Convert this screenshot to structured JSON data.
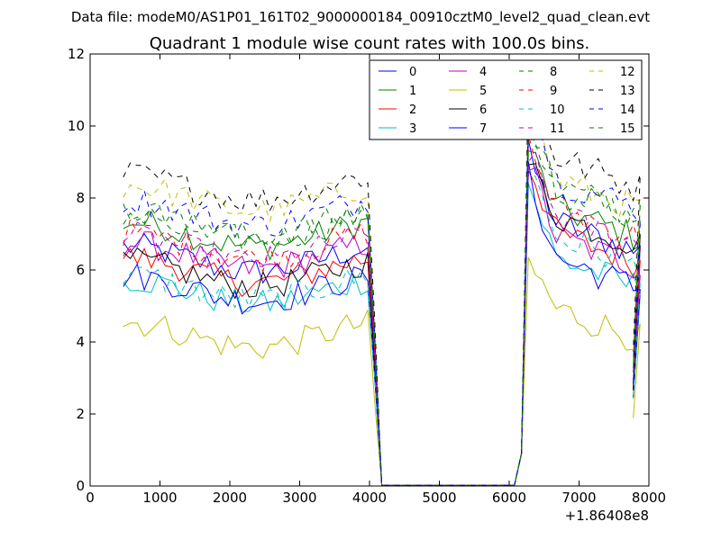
{
  "chart_data": {
    "type": "line",
    "suptitle": "Data file: modeM0/AS1P01_161T02_9000000184_00910cztM0_level2_quad_clean.evt",
    "title": "Quadrant 1 module wise count rates with 100.0s bins.",
    "xlabel": "",
    "ylabel": "",
    "x_offset_label": "+1.86408e8",
    "xlim": [
      0,
      8000
    ],
    "ylim": [
      0,
      12
    ],
    "x_ticks": [
      0,
      1000,
      2000,
      3000,
      4000,
      5000,
      6000,
      7000,
      8000
    ],
    "y_ticks": [
      0,
      2,
      4,
      6,
      8,
      10,
      12
    ],
    "x_tick_labels": [
      "0",
      "1000",
      "2000",
      "3000",
      "4000",
      "5000",
      "6000",
      "7000",
      "8000"
    ],
    "y_tick_labels": [
      "0",
      "2",
      "4",
      "6",
      "8",
      "10",
      "12"
    ],
    "grid": false,
    "legend_position": "top-right",
    "legend_columns": 4,
    "x_segments": {
      "seg1_start": 475,
      "seg1_step": 100,
      "seg1_count": 36,
      "drop": [
        4075,
        4175
      ],
      "gap": [
        5175,
        6075
      ],
      "seg2_start": 6075,
      "seg2_step": 100,
      "seg2_count": 17,
      "tail_end": 7775
    },
    "series": [
      {
        "name": "0",
        "color": "#0000ff",
        "dash": "solid",
        "level1": 6.3,
        "level2": 7.6,
        "peak": 9.2
      },
      {
        "name": "1",
        "color": "#008000",
        "dash": "solid",
        "level1": 7.0,
        "level2": 8.0,
        "peak": 9.4
      },
      {
        "name": "2",
        "color": "#ff0000",
        "dash": "solid",
        "level1": 6.0,
        "level2": 7.3,
        "peak": 9.0
      },
      {
        "name": "3",
        "color": "#00bfbf",
        "dash": "solid",
        "level1": 5.4,
        "level2": 6.6,
        "peak": 8.4
      },
      {
        "name": "4",
        "color": "#bf00bf",
        "dash": "solid",
        "level1": 6.4,
        "level2": 7.2,
        "peak": 9.0
      },
      {
        "name": "5",
        "color": "#bfbf00",
        "dash": "solid",
        "level1": 4.2,
        "level2": 5.2,
        "peak": 6.2
      },
      {
        "name": "6",
        "color": "#000000",
        "dash": "solid",
        "level1": 5.9,
        "level2": 7.8,
        "peak": 9.0
      },
      {
        "name": "7",
        "color": "#0000ff",
        "dash": "solid",
        "level1": 5.5,
        "level2": 6.6,
        "peak": 8.6
      },
      {
        "name": "8",
        "color": "#008000",
        "dash": "dashed",
        "level1": 7.2,
        "level2": 8.6,
        "peak": 10.0
      },
      {
        "name": "9",
        "color": "#ff0000",
        "dash": "dashed",
        "level1": 6.7,
        "level2": 8.0,
        "peak": 9.5
      },
      {
        "name": "10",
        "color": "#00bfbf",
        "dash": "dashed",
        "level1": 5.5,
        "level2": 7.2,
        "peak": 9.0
      },
      {
        "name": "11",
        "color": "#bf00bf",
        "dash": "dashed",
        "level1": 6.6,
        "level2": 7.8,
        "peak": 9.3
      },
      {
        "name": "12",
        "color": "#bfbf00",
        "dash": "dashed",
        "level1": 8.0,
        "level2": 8.8,
        "peak": 10.5
      },
      {
        "name": "13",
        "color": "#000000",
        "dash": "dashed",
        "level1": 8.3,
        "level2": 9.4,
        "peak": 11.3
      },
      {
        "name": "14",
        "color": "#0000ff",
        "dash": "dashed",
        "level1": 7.6,
        "level2": 8.8,
        "peak": 10.8
      },
      {
        "name": "15",
        "color": "#008000",
        "dash": "dashed",
        "level1": 7.3,
        "level2": 8.5,
        "peak": 10.2
      }
    ]
  }
}
